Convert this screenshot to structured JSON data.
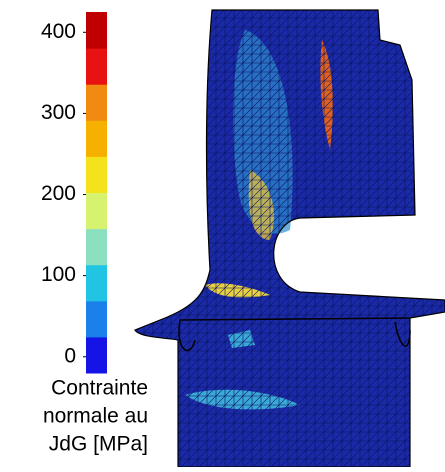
{
  "chart_data": {
    "type": "colorbar",
    "label_lines": [
      "Contrainte",
      "normale au",
      "JdG [MPa]"
    ],
    "ylim": [
      -20,
      425
    ],
    "yticks": [
      0,
      100,
      200,
      300,
      400
    ],
    "colors": [
      "#1414e6",
      "#1a80ea",
      "#22c4e4",
      "#8ce0c0",
      "#d6f26e",
      "#f4e21c",
      "#f5b000",
      "#f08a10",
      "#e81212",
      "#c00000"
    ]
  }
}
